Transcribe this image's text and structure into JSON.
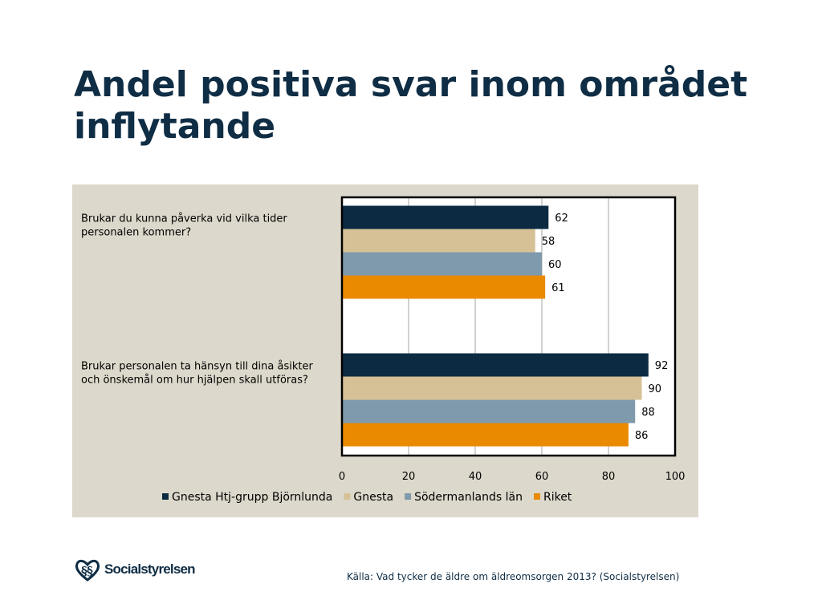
{
  "slide": {
    "title": "Andel positiva svar inom området inflytande",
    "source": "Källa: Vad tycker de äldre om äldreomsorgen 2013? (Socialstyrelsen)",
    "logo_text": "Socialstyrelsen"
  },
  "chart_data": {
    "type": "bar",
    "orientation": "horizontal",
    "categories": [
      "Brukar du kunna påverka vid vilka tider personalen kommer?",
      "Brukar personalen ta hänsyn till dina åsikter och önskemål om hur hjälpen skall utföras?"
    ],
    "series": [
      {
        "name": "Gnesta Htj-grupp Björnlunda",
        "color": "#0c2b42",
        "values": [
          62,
          92
        ]
      },
      {
        "name": "Gnesta",
        "color": "#d6c196",
        "values": [
          58,
          90
        ]
      },
      {
        "name": "Södermanlands län",
        "color": "#7f9aac",
        "values": [
          60,
          88
        ]
      },
      {
        "name": "Riket",
        "color": "#ea8a00",
        "values": [
          61,
          86
        ]
      }
    ],
    "xlim": [
      0,
      100
    ],
    "xticks": [
      0,
      20,
      40,
      60,
      80,
      100
    ],
    "grid": true,
    "legend": "bottom",
    "data_labels": true
  }
}
